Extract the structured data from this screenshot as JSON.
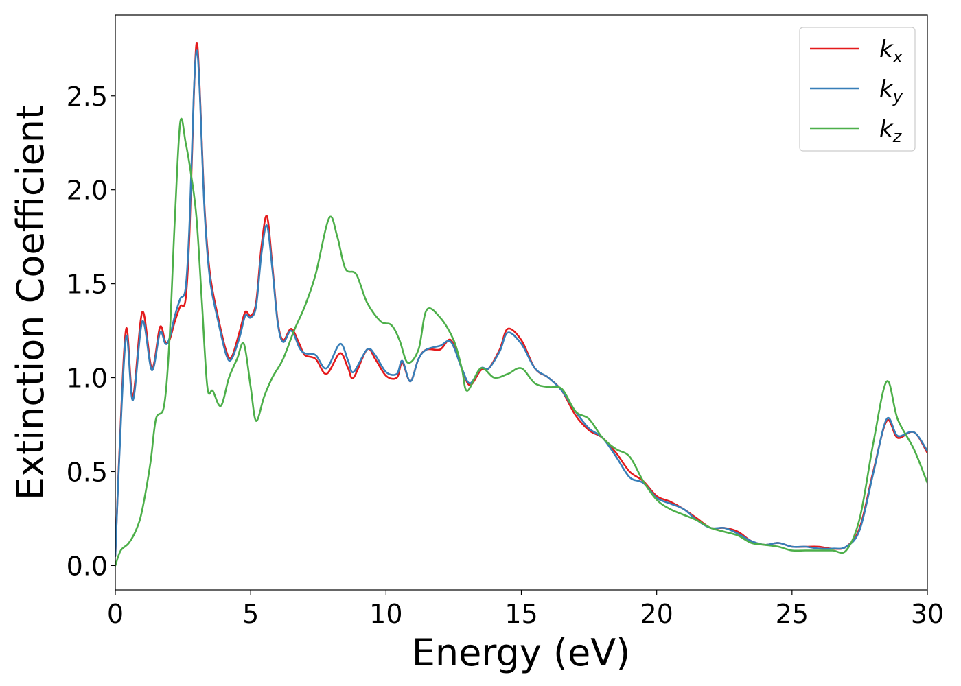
{
  "chart_data": {
    "type": "line",
    "title": "",
    "xlabel": "Energy (eV)",
    "ylabel": "Extinction Coefficient",
    "xlim": [
      0,
      30
    ],
    "ylim": [
      -0.13,
      2.93
    ],
    "xticks": [
      0,
      5,
      10,
      15,
      20,
      25,
      30
    ],
    "xtick_labels": [
      "0",
      "5",
      "10",
      "15",
      "20",
      "25",
      "30"
    ],
    "yticks": [
      0,
      0.5,
      1,
      1.5,
      2,
      2.5
    ],
    "ytick_labels": [
      "0.0",
      "0.5",
      "1.0",
      "1.5",
      "2.0",
      "2.5"
    ],
    "grid": false,
    "legend_position": "top-right",
    "series": [
      {
        "name": "k_x",
        "label_base": "k",
        "label_sub": "x",
        "color": "#e41a1c",
        "points": [
          [
            0,
            0.05
          ],
          [
            0.15,
            0.6
          ],
          [
            0.4,
            1.26
          ],
          [
            0.65,
            0.9
          ],
          [
            1.0,
            1.35
          ],
          [
            1.35,
            1.05
          ],
          [
            1.65,
            1.27
          ],
          [
            1.85,
            1.19
          ],
          [
            2.0,
            1.2
          ],
          [
            2.2,
            1.3
          ],
          [
            2.4,
            1.38
          ],
          [
            2.6,
            1.42
          ],
          [
            2.75,
            1.8
          ],
          [
            2.9,
            2.5
          ],
          [
            3.0,
            2.78
          ],
          [
            3.1,
            2.6
          ],
          [
            3.3,
            1.9
          ],
          [
            3.5,
            1.55
          ],
          [
            3.8,
            1.32
          ],
          [
            4.1,
            1.14
          ],
          [
            4.3,
            1.11
          ],
          [
            4.6,
            1.25
          ],
          [
            4.8,
            1.35
          ],
          [
            5.0,
            1.33
          ],
          [
            5.2,
            1.4
          ],
          [
            5.4,
            1.7
          ],
          [
            5.6,
            1.86
          ],
          [
            5.8,
            1.6
          ],
          [
            6.0,
            1.3
          ],
          [
            6.2,
            1.2
          ],
          [
            6.5,
            1.26
          ],
          [
            6.8,
            1.18
          ],
          [
            7.0,
            1.12
          ],
          [
            7.4,
            1.1
          ],
          [
            7.8,
            1.02
          ],
          [
            8.3,
            1.13
          ],
          [
            8.6,
            1.05
          ],
          [
            8.8,
            1.0
          ],
          [
            9.3,
            1.15
          ],
          [
            9.6,
            1.1
          ],
          [
            10.0,
            1.01
          ],
          [
            10.4,
            1.0
          ],
          [
            10.6,
            1.08
          ],
          [
            10.9,
            0.98
          ],
          [
            11.2,
            1.1
          ],
          [
            11.5,
            1.15
          ],
          [
            12.0,
            1.15
          ],
          [
            12.4,
            1.2
          ],
          [
            12.8,
            1.05
          ],
          [
            13.1,
            0.96
          ],
          [
            13.5,
            1.04
          ],
          [
            13.8,
            1.05
          ],
          [
            14.2,
            1.15
          ],
          [
            14.5,
            1.26
          ],
          [
            15.0,
            1.2
          ],
          [
            15.5,
            1.05
          ],
          [
            16.0,
            1.0
          ],
          [
            16.5,
            0.93
          ],
          [
            17.0,
            0.8
          ],
          [
            17.5,
            0.72
          ],
          [
            18.0,
            0.68
          ],
          [
            18.5,
            0.6
          ],
          [
            19.0,
            0.5
          ],
          [
            19.5,
            0.45
          ],
          [
            20.0,
            0.37
          ],
          [
            20.5,
            0.34
          ],
          [
            21.0,
            0.3
          ],
          [
            21.5,
            0.25
          ],
          [
            22.0,
            0.2
          ],
          [
            22.5,
            0.2
          ],
          [
            23.0,
            0.18
          ],
          [
            23.5,
            0.13
          ],
          [
            24.0,
            0.11
          ],
          [
            24.5,
            0.12
          ],
          [
            25.0,
            0.1
          ],
          [
            25.5,
            0.1
          ],
          [
            26.0,
            0.1
          ],
          [
            26.5,
            0.09
          ],
          [
            27.0,
            0.1
          ],
          [
            27.5,
            0.2
          ],
          [
            28.0,
            0.5
          ],
          [
            28.5,
            0.77
          ],
          [
            28.9,
            0.68
          ],
          [
            29.5,
            0.71
          ],
          [
            30.0,
            0.6
          ]
        ]
      },
      {
        "name": "k_y",
        "label_base": "k",
        "label_sub": "y",
        "color": "#377eb8",
        "points": [
          [
            0,
            0.05
          ],
          [
            0.15,
            0.58
          ],
          [
            0.4,
            1.22
          ],
          [
            0.65,
            0.88
          ],
          [
            1.0,
            1.3
          ],
          [
            1.35,
            1.04
          ],
          [
            1.65,
            1.24
          ],
          [
            1.85,
            1.18
          ],
          [
            2.0,
            1.21
          ],
          [
            2.2,
            1.33
          ],
          [
            2.4,
            1.42
          ],
          [
            2.6,
            1.48
          ],
          [
            2.75,
            1.85
          ],
          [
            2.9,
            2.52
          ],
          [
            3.0,
            2.74
          ],
          [
            3.1,
            2.58
          ],
          [
            3.3,
            1.88
          ],
          [
            3.5,
            1.52
          ],
          [
            3.8,
            1.3
          ],
          [
            4.1,
            1.12
          ],
          [
            4.3,
            1.1
          ],
          [
            4.6,
            1.22
          ],
          [
            4.8,
            1.33
          ],
          [
            5.0,
            1.32
          ],
          [
            5.2,
            1.38
          ],
          [
            5.4,
            1.66
          ],
          [
            5.6,
            1.81
          ],
          [
            5.8,
            1.58
          ],
          [
            6.0,
            1.29
          ],
          [
            6.2,
            1.19
          ],
          [
            6.5,
            1.25
          ],
          [
            6.8,
            1.16
          ],
          [
            7.0,
            1.13
          ],
          [
            7.4,
            1.12
          ],
          [
            7.8,
            1.05
          ],
          [
            8.3,
            1.18
          ],
          [
            8.6,
            1.09
          ],
          [
            8.8,
            1.03
          ],
          [
            9.3,
            1.15
          ],
          [
            9.6,
            1.12
          ],
          [
            10.0,
            1.03
          ],
          [
            10.4,
            1.02
          ],
          [
            10.6,
            1.09
          ],
          [
            10.9,
            0.98
          ],
          [
            11.2,
            1.1
          ],
          [
            11.5,
            1.15
          ],
          [
            12.0,
            1.17
          ],
          [
            12.4,
            1.19
          ],
          [
            12.8,
            1.05
          ],
          [
            13.1,
            0.97
          ],
          [
            13.5,
            1.05
          ],
          [
            13.8,
            1.05
          ],
          [
            14.2,
            1.14
          ],
          [
            14.5,
            1.24
          ],
          [
            15.0,
            1.18
          ],
          [
            15.5,
            1.05
          ],
          [
            16.0,
            1.0
          ],
          [
            16.5,
            0.93
          ],
          [
            17.0,
            0.82
          ],
          [
            17.5,
            0.73
          ],
          [
            18.0,
            0.68
          ],
          [
            18.5,
            0.58
          ],
          [
            19.0,
            0.47
          ],
          [
            19.5,
            0.44
          ],
          [
            20.0,
            0.36
          ],
          [
            20.5,
            0.33
          ],
          [
            21.0,
            0.3
          ],
          [
            21.5,
            0.24
          ],
          [
            22.0,
            0.2
          ],
          [
            22.5,
            0.2
          ],
          [
            23.0,
            0.17
          ],
          [
            23.5,
            0.13
          ],
          [
            24.0,
            0.11
          ],
          [
            24.5,
            0.12
          ],
          [
            25.0,
            0.1
          ],
          [
            25.5,
            0.1
          ],
          [
            26.0,
            0.09
          ],
          [
            26.5,
            0.09
          ],
          [
            27.0,
            0.1
          ],
          [
            27.5,
            0.19
          ],
          [
            28.0,
            0.49
          ],
          [
            28.5,
            0.78
          ],
          [
            28.9,
            0.69
          ],
          [
            29.5,
            0.71
          ],
          [
            30.0,
            0.61
          ]
        ]
      },
      {
        "name": "k_z",
        "label_base": "k",
        "label_sub": "z",
        "color": "#4daf4a",
        "points": [
          [
            0,
            0.0
          ],
          [
            0.2,
            0.08
          ],
          [
            0.5,
            0.12
          ],
          [
            0.8,
            0.2
          ],
          [
            1.0,
            0.3
          ],
          [
            1.3,
            0.55
          ],
          [
            1.5,
            0.78
          ],
          [
            1.8,
            0.85
          ],
          [
            2.0,
            1.2
          ],
          [
            2.2,
            1.85
          ],
          [
            2.4,
            2.36
          ],
          [
            2.6,
            2.25
          ],
          [
            2.8,
            2.08
          ],
          [
            3.0,
            1.85
          ],
          [
            3.2,
            1.4
          ],
          [
            3.4,
            0.95
          ],
          [
            3.6,
            0.93
          ],
          [
            3.9,
            0.85
          ],
          [
            4.2,
            1.0
          ],
          [
            4.5,
            1.1
          ],
          [
            4.75,
            1.18
          ],
          [
            5.0,
            0.95
          ],
          [
            5.2,
            0.77
          ],
          [
            5.5,
            0.9
          ],
          [
            5.8,
            1.0
          ],
          [
            6.2,
            1.1
          ],
          [
            6.6,
            1.25
          ],
          [
            7.0,
            1.38
          ],
          [
            7.4,
            1.55
          ],
          [
            7.9,
            1.85
          ],
          [
            8.2,
            1.75
          ],
          [
            8.5,
            1.58
          ],
          [
            8.9,
            1.55
          ],
          [
            9.3,
            1.4
          ],
          [
            9.8,
            1.3
          ],
          [
            10.2,
            1.28
          ],
          [
            10.5,
            1.2
          ],
          [
            10.8,
            1.08
          ],
          [
            11.2,
            1.15
          ],
          [
            11.5,
            1.36
          ],
          [
            12.0,
            1.32
          ],
          [
            12.5,
            1.2
          ],
          [
            12.8,
            1.05
          ],
          [
            13.0,
            0.93
          ],
          [
            13.5,
            1.05
          ],
          [
            14.0,
            1.0
          ],
          [
            14.5,
            1.02
          ],
          [
            15.0,
            1.05
          ],
          [
            15.5,
            0.97
          ],
          [
            16.0,
            0.95
          ],
          [
            16.5,
            0.94
          ],
          [
            17.0,
            0.82
          ],
          [
            17.5,
            0.78
          ],
          [
            18.0,
            0.68
          ],
          [
            18.5,
            0.62
          ],
          [
            19.0,
            0.58
          ],
          [
            19.5,
            0.45
          ],
          [
            20.0,
            0.35
          ],
          [
            20.5,
            0.3
          ],
          [
            21.0,
            0.27
          ],
          [
            21.5,
            0.24
          ],
          [
            22.0,
            0.2
          ],
          [
            22.5,
            0.18
          ],
          [
            23.0,
            0.16
          ],
          [
            23.5,
            0.12
          ],
          [
            24.0,
            0.11
          ],
          [
            24.5,
            0.1
          ],
          [
            25.0,
            0.08
          ],
          [
            25.5,
            0.08
          ],
          [
            26.0,
            0.08
          ],
          [
            26.5,
            0.08
          ],
          [
            27.0,
            0.08
          ],
          [
            27.5,
            0.25
          ],
          [
            28.0,
            0.65
          ],
          [
            28.5,
            0.98
          ],
          [
            28.9,
            0.78
          ],
          [
            29.5,
            0.62
          ],
          [
            30.0,
            0.44
          ]
        ]
      }
    ]
  }
}
